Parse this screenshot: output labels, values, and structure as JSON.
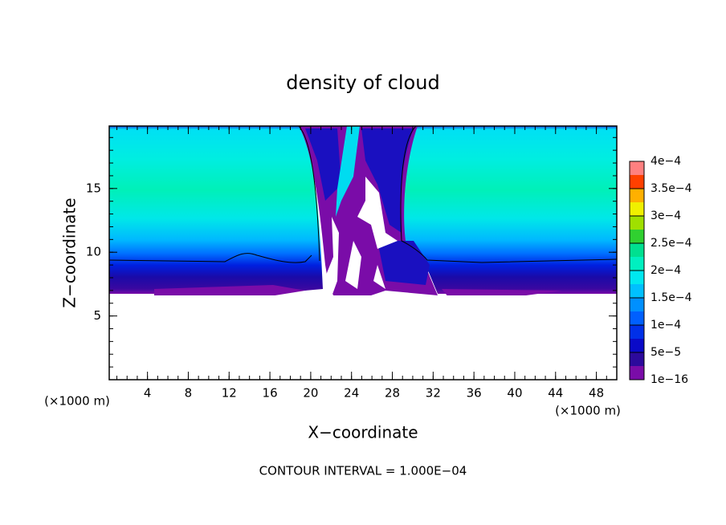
{
  "chart_data": {
    "type": "contour",
    "title": "density of cloud",
    "xlabel": "X−coordinate",
    "ylabel": "Z−coordinate",
    "xunit": "(×1000 m)",
    "yunit": "(×1000 m)",
    "note": "CONTOUR INTERVAL = 1.000E−04",
    "xlim": [
      0.25,
      50
    ],
    "ylim": [
      0,
      19.9
    ],
    "xticks": [
      4,
      8,
      12,
      16,
      20,
      24,
      28,
      32,
      36,
      40,
      44,
      48
    ],
    "yticks": [
      5,
      10,
      15
    ],
    "colorbar": {
      "levels": [
        {
          "value": 1e-16,
          "label": "1e−16"
        },
        {
          "value": 5e-05,
          "label": "5e−5"
        },
        {
          "value": 0.0001,
          "label": "1e−4"
        },
        {
          "value": 0.00015,
          "label": "1.5e−4"
        },
        {
          "value": 0.0002,
          "label": "2e−4"
        },
        {
          "value": 0.00025,
          "label": "2.5e−4"
        },
        {
          "value": 0.0003,
          "label": "3e−4"
        },
        {
          "value": 0.00035,
          "label": "3.5e−4"
        },
        {
          "value": 0.0004,
          "label": "4e−4"
        }
      ],
      "colors": [
        "#7a0ca8",
        "#2c0a9c",
        "#0a0ac8",
        "#0030e8",
        "#0060ff",
        "#0090ff",
        "#00c0ff",
        "#00e8f0",
        "#00f0c0",
        "#00e090",
        "#30d030",
        "#a0e000",
        "#f0f000",
        "#ffb000",
        "#ff4000",
        "#ff8080"
      ]
    }
  }
}
